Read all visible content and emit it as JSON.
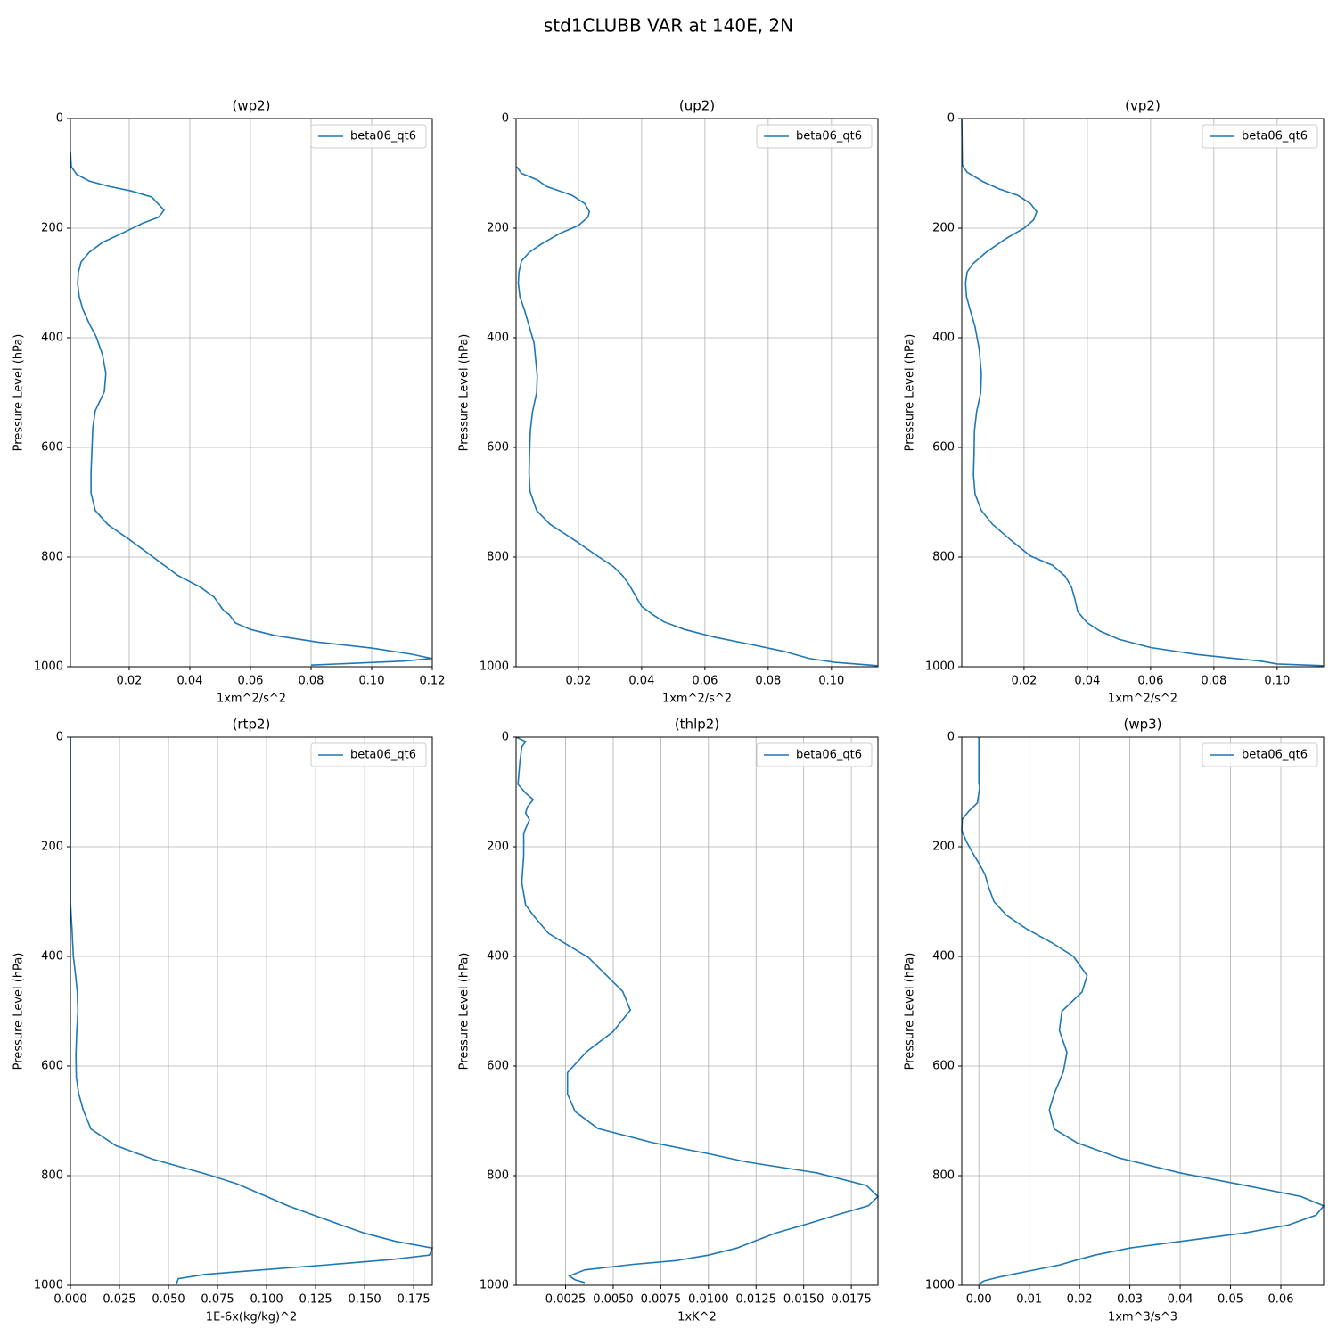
{
  "title": "std1CLUBB VAR at 140E, 2N",
  "chart_data": [
    {
      "type": "line",
      "title": "(wp2)",
      "xlabel": "1xm^2/s^2",
      "ylabel": "Pressure Level (hPa)",
      "y": [
        60,
        88,
        102,
        114,
        124,
        132,
        143,
        167,
        180,
        191,
        207,
        226,
        244,
        262,
        281,
        301,
        325,
        348,
        374,
        398,
        431,
        465,
        498,
        533,
        564,
        605,
        646,
        683,
        715,
        741,
        769,
        798,
        833,
        855,
        873,
        898,
        905,
        920,
        932,
        943,
        955,
        966,
        977,
        985,
        990,
        997
      ],
      "series": [
        {
          "name": "beta06_qt6",
          "color": "#1f77b4",
          "values": [
            0.0006,
            0.0009,
            0.0027,
            0.0068,
            0.0135,
            0.0206,
            0.0274,
            0.0315,
            0.0297,
            0.0244,
            0.0185,
            0.0112,
            0.0068,
            0.0041,
            0.0032,
            0.003,
            0.0035,
            0.0047,
            0.0068,
            0.0091,
            0.0112,
            0.0123,
            0.0118,
            0.0088,
            0.008,
            0.0077,
            0.0074,
            0.0074,
            0.0088,
            0.013,
            0.0203,
            0.0274,
            0.0359,
            0.0435,
            0.048,
            0.0512,
            0.053,
            0.055,
            0.06,
            0.068,
            0.082,
            0.1,
            0.113,
            0.1198,
            0.11,
            0.08
          ]
        }
      ],
      "xlim": [
        0.0006,
        0.12
      ],
      "xticks": [
        0.02,
        0.04,
        0.06,
        0.08,
        {
          "value": 0.1,
          "label": "0.10"
        },
        0.12
      ],
      "ylim": [
        0,
        1000
      ],
      "y_inverted": true,
      "yticks": [
        0,
        200,
        400,
        600,
        800,
        1000
      ],
      "grid": true,
      "legend": "upper right"
    },
    {
      "type": "line",
      "title": "(up2)",
      "xlabel": "1xm^2/s^2",
      "ylabel": "Pressure Level (hPa)",
      "y": [
        88,
        100,
        112,
        124,
        140,
        155,
        170,
        180,
        195,
        210,
        230,
        244,
        260,
        280,
        300,
        325,
        350,
        380,
        410,
        440,
        470,
        500,
        535,
        570,
        605,
        645,
        680,
        715,
        740,
        770,
        798,
        817,
        834,
        850,
        870,
        890,
        905,
        918,
        932,
        946,
        960,
        972,
        985,
        992,
        998
      ],
      "series": [
        {
          "name": "beta06_qt6",
          "color": "#1f77b4",
          "values": [
            0.0005,
            0.002,
            0.007,
            0.01,
            0.018,
            0.022,
            0.0235,
            0.023,
            0.02,
            0.014,
            0.008,
            0.0045,
            0.002,
            0.0012,
            0.001,
            0.0015,
            0.003,
            0.0045,
            0.006,
            0.0065,
            0.007,
            0.0068,
            0.0055,
            0.0048,
            0.0046,
            0.0044,
            0.0047,
            0.0068,
            0.011,
            0.019,
            0.026,
            0.031,
            0.034,
            0.036,
            0.038,
            0.04,
            0.0435,
            0.047,
            0.0535,
            0.063,
            0.075,
            0.085,
            0.093,
            0.101,
            0.1145
          ]
        }
      ],
      "xlim": [
        0.0003,
        0.1147
      ],
      "xticks": [
        0.02,
        0.04,
        0.06,
        0.08,
        {
          "value": 0.1,
          "label": "0.10"
        }
      ],
      "ylim": [
        0,
        1000
      ],
      "y_inverted": true,
      "yticks": [
        0,
        200,
        400,
        600,
        800,
        1000
      ],
      "grid": true,
      "legend": "upper right"
    },
    {
      "type": "line",
      "title": "(vp2)",
      "xlabel": "1xm^2/s^2",
      "ylabel": "Pressure Level (hPa)",
      "y": [
        0,
        85,
        98,
        115,
        128,
        140,
        155,
        170,
        185,
        200,
        220,
        244,
        265,
        280,
        300,
        325,
        350,
        380,
        420,
        465,
        500,
        535,
        570,
        610,
        650,
        685,
        715,
        740,
        770,
        798,
        815,
        835,
        855,
        875,
        900,
        920,
        935,
        950,
        965,
        978,
        990,
        995,
        998
      ],
      "series": [
        {
          "name": "beta06_qt6",
          "color": "#1f77b4",
          "values": [
            0.0003,
            0.0005,
            0.002,
            0.007,
            0.012,
            0.018,
            0.022,
            0.024,
            0.023,
            0.02,
            0.014,
            0.008,
            0.0038,
            0.002,
            0.0015,
            0.0018,
            0.003,
            0.0045,
            0.0058,
            0.0065,
            0.0063,
            0.005,
            0.0043,
            0.0042,
            0.004,
            0.0045,
            0.0065,
            0.01,
            0.016,
            0.022,
            0.029,
            0.033,
            0.035,
            0.036,
            0.037,
            0.04,
            0.044,
            0.05,
            0.06,
            0.075,
            0.095,
            0.1,
            0.1145
          ]
        }
      ],
      "xlim": [
        0.0003,
        0.1147
      ],
      "xticks": [
        0.02,
        0.04,
        0.06,
        0.08,
        {
          "value": 0.1,
          "label": "0.10"
        }
      ],
      "ylim": [
        0,
        1000
      ],
      "y_inverted": true,
      "yticks": [
        0,
        200,
        400,
        600,
        800,
        1000
      ],
      "grid": true,
      "legend": "upper right"
    },
    {
      "type": "line",
      "title": "(rtp2)",
      "xlabel": "1E-6x(kg/kg)^2",
      "ylabel": "Pressure Level (hPa)",
      "y": [
        0,
        300,
        350,
        400,
        430,
        465,
        500,
        540,
        580,
        620,
        650,
        680,
        715,
        745,
        770,
        798,
        815,
        838,
        855,
        872,
        890,
        905,
        920,
        932,
        945,
        953,
        963,
        972,
        980,
        988,
        998
      ],
      "series": [
        {
          "name": "beta06_qt6",
          "color": "#1f77b4",
          "values": [
            0,
            0,
            0.0008,
            0.0015,
            0.0025,
            0.0035,
            0.0038,
            0.0032,
            0.0028,
            0.003,
            0.0042,
            0.0065,
            0.0105,
            0.023,
            0.042,
            0.07,
            0.085,
            0.1,
            0.111,
            0.124,
            0.138,
            0.15,
            0.166,
            0.1845,
            0.183,
            0.164,
            0.13,
            0.097,
            0.069,
            0.055,
            0.054
          ]
        }
      ],
      "xlim": [
        0,
        0.1845
      ],
      "xticks": [
        {
          "value": 0,
          "label": "0.000"
        },
        0.025,
        {
          "value": 0.05,
          "label": "0.050"
        },
        0.075,
        {
          "value": 0.1,
          "label": "0.100"
        },
        0.125,
        {
          "value": 0.15,
          "label": "0.150"
        },
        0.175
      ],
      "ylim": [
        0,
        1000
      ],
      "y_inverted": true,
      "yticks": [
        0,
        200,
        400,
        600,
        800,
        1000
      ],
      "grid": true,
      "legend": "upper right"
    },
    {
      "type": "line",
      "title": "(thlp2)",
      "xlabel": "1xK^2",
      "ylabel": "Pressure Level (hPa)",
      "y": [
        0,
        8,
        18,
        45,
        86,
        102,
        114,
        127,
        138,
        151,
        175,
        216,
        265,
        306,
        325,
        358,
        402,
        464,
        498,
        537,
        574,
        612,
        651,
        683,
        714,
        740,
        760,
        775,
        795,
        818,
        838,
        855,
        872,
        888,
        905,
        932,
        945,
        955,
        962,
        972,
        983,
        990,
        995
      ],
      "series": [
        {
          "name": "beta06_qt6",
          "color": "#1f77b4",
          "values": [
            -0.0001,
            0.0004,
            0.0002,
            0.0001,
            0,
            0.0004,
            0.0008,
            0.0005,
            0.0004,
            0.0006,
            0.0003,
            0.0003,
            0.0002,
            0.0004,
            0.0008,
            0.0016,
            0.0037,
            0.0055,
            0.0059,
            0.005,
            0.0036,
            0.0026,
            0.0026,
            0.003,
            0.0042,
            0.0071,
            0.01,
            0.012,
            0.0157,
            0.0183,
            0.0189,
            0.0184,
            0.0167,
            0.0152,
            0.0135,
            0.0115,
            0.01,
            0.0083,
            0.006,
            0.0035,
            0.0027,
            0.003,
            0.0035
          ]
        }
      ],
      "xlim": [
        -0.0001,
        0.0189
      ],
      "xticks": [
        0.0025,
        {
          "value": 0.005,
          "label": "0.0050"
        },
        0.0075,
        {
          "value": 0.01,
          "label": "0.0100"
        },
        0.0125,
        {
          "value": 0.015,
          "label": "0.0150"
        },
        0.0175
      ],
      "ylim": [
        0,
        1000
      ],
      "y_inverted": true,
      "yticks": [
        0,
        200,
        400,
        600,
        800,
        1000
      ],
      "grid": true,
      "legend": "upper right"
    },
    {
      "type": "line",
      "title": "(wp3)",
      "xlabel": "1xm^3/s^3",
      "ylabel": "Pressure Level (hPa)",
      "y": [
        0,
        85,
        90,
        120,
        135,
        150,
        170,
        190,
        215,
        230,
        250,
        275,
        300,
        325,
        350,
        375,
        400,
        435,
        465,
        500,
        535,
        575,
        610,
        650,
        680,
        715,
        740,
        768,
        795,
        818,
        838,
        855,
        872,
        890,
        905,
        920,
        932,
        945,
        955,
        963,
        973,
        985,
        992,
        998
      ],
      "series": [
        {
          "name": "beta06_qt6",
          "color": "#1f77b4",
          "values": [
            0,
            0,
            0.0002,
            -0.0003,
            -0.002,
            -0.0033,
            -0.0034,
            -0.0025,
            -0.001,
            0,
            0.0012,
            0.002,
            0.003,
            0.0055,
            0.0095,
            0.0145,
            0.0188,
            0.0215,
            0.0205,
            0.0165,
            0.016,
            0.0175,
            0.0168,
            0.015,
            0.014,
            0.015,
            0.0195,
            0.028,
            0.04,
            0.053,
            0.064,
            0.0685,
            0.067,
            0.0615,
            0.0525,
            0.04,
            0.03,
            0.023,
            0.019,
            0.016,
            0.0105,
            0.004,
            0.001,
            0
          ]
        }
      ],
      "xlim": [
        -0.0034,
        0.0685
      ],
      "xticks": [
        {
          "value": 0,
          "label": "0.00"
        },
        0.01,
        0.02,
        0.03,
        0.04,
        0.05,
        0.06
      ],
      "ylim": [
        0,
        1000
      ],
      "y_inverted": true,
      "yticks": [
        0,
        200,
        400,
        600,
        800,
        1000
      ],
      "grid": true,
      "legend": "upper right"
    }
  ]
}
